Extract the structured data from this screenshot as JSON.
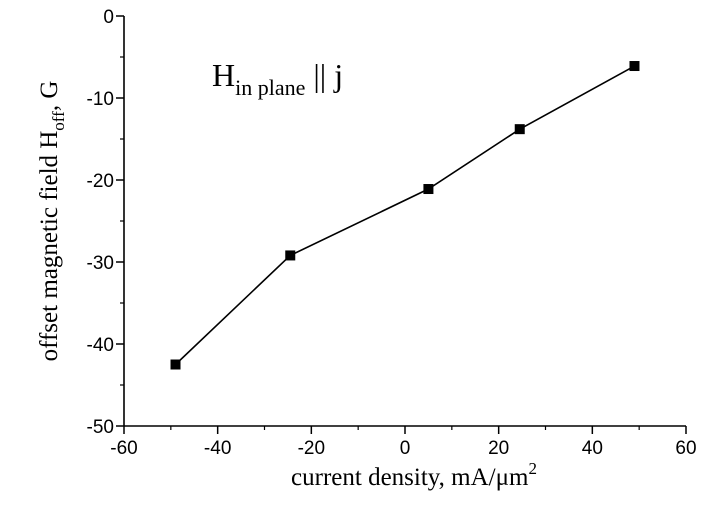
{
  "chart_data": {
    "type": "line",
    "title": "",
    "annotation": {
      "main": "H",
      "subscript": "in plane",
      "rest": " || j"
    },
    "xlabel": {
      "main": "current density, mA/μm",
      "superscript": "2"
    },
    "ylabel": {
      "main": "offset magnetic field H",
      "subscript": "off",
      "rest": ", G"
    },
    "xlim": [
      -60,
      60
    ],
    "ylim": [
      -50,
      0
    ],
    "xticks": [
      -60,
      -40,
      -20,
      0,
      20,
      40,
      60
    ],
    "yticks": [
      0,
      -10,
      -20,
      -30,
      -40,
      -50
    ],
    "grid": false,
    "marker": "square",
    "series": [
      {
        "x": [
          -49,
          -24.5,
          5,
          24.5,
          49
        ],
        "y": [
          -42.5,
          -29.2,
          -21.1,
          -13.8,
          -6.1
        ]
      }
    ]
  }
}
